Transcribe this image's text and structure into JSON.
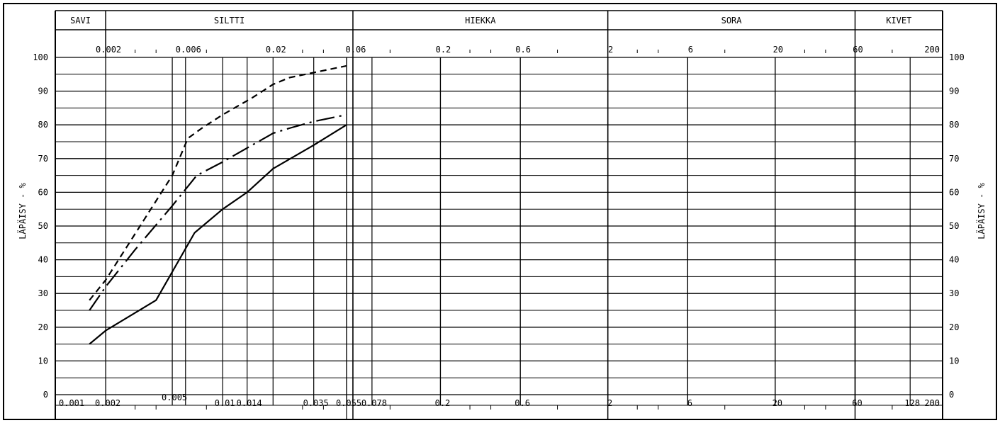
{
  "chart_data": {
    "type": "line",
    "x_scale": "log",
    "xlim": [
      0.001,
      200
    ],
    "ylim": [
      0,
      100
    ],
    "ylabel_left": "LÄPÄISY - %",
    "ylabel_right": "LÄPÄISY - %",
    "fractions": [
      {
        "name": "SAVI",
        "from": 0.001,
        "to": 0.002
      },
      {
        "name": "SILTTI",
        "from": 0.002,
        "to": 0.06
      },
      {
        "name": "HIEKKA",
        "from": 0.06,
        "to": 2
      },
      {
        "name": "SORA",
        "from": 2,
        "to": 60
      },
      {
        "name": "KIVET",
        "from": 60,
        "to": 200
      }
    ],
    "top_ticks": [
      "0.002",
      "0.006",
      "0.02",
      "0.06",
      "0.2",
      "0.6",
      "2",
      "6",
      "20",
      "60",
      "200"
    ],
    "bottom_ticks": [
      "0.001",
      "0.002",
      "0.005",
      "0.01",
      "0.014",
      "0.035",
      "0.055",
      "0.078",
      "0.2",
      "0.6",
      "2",
      "6",
      "20",
      "60",
      "128",
      "200"
    ],
    "y_ticks": [
      "0",
      "10",
      "20",
      "30",
      "40",
      "50",
      "60",
      "70",
      "80",
      "90",
      "100"
    ],
    "grid": true,
    "series": [
      {
        "style": "dashed",
        "x": [
          0.0016,
          0.002,
          0.005,
          0.0062,
          0.0075,
          0.01,
          0.015,
          0.02,
          0.025,
          0.035,
          0.055
        ],
        "y": [
          28,
          34,
          65,
          76,
          79,
          83,
          88,
          92,
          94,
          95.5,
          97.5
        ]
      },
      {
        "style": "dashdot",
        "x": [
          0.0016,
          0.002,
          0.003,
          0.005,
          0.007,
          0.01,
          0.015,
          0.02,
          0.025,
          0.035,
          0.055
        ],
        "y": [
          25,
          32,
          43,
          56,
          65,
          69,
          74,
          77.5,
          79,
          81,
          83
        ]
      },
      {
        "style": "solid",
        "x": [
          0.0016,
          0.002,
          0.004,
          0.0068,
          0.01,
          0.014,
          0.02,
          0.035,
          0.055
        ],
        "y": [
          15,
          19,
          28,
          48,
          55,
          60,
          67,
          74,
          80
        ]
      }
    ]
  }
}
